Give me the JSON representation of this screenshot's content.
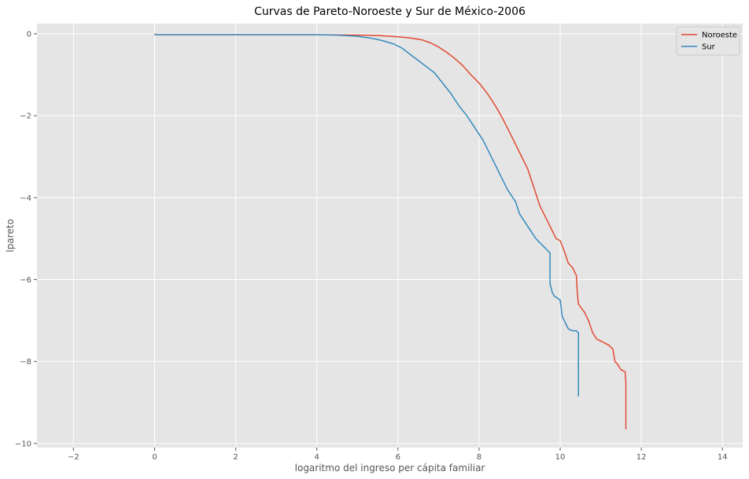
{
  "chart_data": {
    "type": "line",
    "title": "Curvas de Pareto-Noroeste y Sur de México-2006",
    "xlabel": "logaritmo del ingreso per cápita familiar",
    "ylabel": "lpareto",
    "xlim": [
      -2.9,
      14.5
    ],
    "ylim": [
      -10.1,
      0.25
    ],
    "xticks": [
      -2,
      0,
      2,
      4,
      6,
      8,
      10,
      12,
      14
    ],
    "yticks": [
      0,
      -2,
      -4,
      -6,
      -8,
      -10
    ],
    "xtick_labels": [
      "−2",
      "0",
      "2",
      "4",
      "6",
      "8",
      "10",
      "12",
      "14"
    ],
    "ytick_labels": [
      "0",
      "−2",
      "−4",
      "−6",
      "−8",
      "−10"
    ],
    "grid": true,
    "legend_position": "top-right",
    "series": [
      {
        "name": "Noroeste",
        "color": "#e24a33",
        "x": [
          0,
          0.02,
          2,
          4,
          5,
          5.5,
          6,
          6.3,
          6.6,
          6.8,
          7.0,
          7.2,
          7.4,
          7.6,
          7.8,
          8.0,
          8.2,
          8.4,
          8.6,
          8.8,
          9.0,
          9.2,
          9.4,
          9.5,
          9.6,
          9.7,
          9.8,
          9.85,
          9.9,
          10.0,
          10.1,
          10.15,
          10.2,
          10.3,
          10.4,
          10.42,
          10.45,
          10.6,
          10.7,
          10.8,
          10.9,
          11.0,
          11.2,
          11.3,
          11.35,
          11.4,
          11.5,
          11.6,
          11.62,
          11.62
        ],
        "y": [
          0,
          -0.02,
          -0.02,
          -0.02,
          -0.03,
          -0.04,
          -0.07,
          -0.1,
          -0.15,
          -0.22,
          -0.32,
          -0.45,
          -0.6,
          -0.78,
          -1.0,
          -1.2,
          -1.45,
          -1.75,
          -2.1,
          -2.5,
          -2.9,
          -3.3,
          -3.9,
          -4.2,
          -4.4,
          -4.6,
          -4.8,
          -4.9,
          -5.0,
          -5.05,
          -5.3,
          -5.45,
          -5.6,
          -5.7,
          -5.9,
          -6.3,
          -6.6,
          -6.8,
          -7.0,
          -7.3,
          -7.45,
          -7.5,
          -7.6,
          -7.7,
          -8.0,
          -8.05,
          -8.2,
          -8.25,
          -8.5,
          -9.65
        ]
      },
      {
        "name": "Sur",
        "color": "#348abd",
        "x": [
          0,
          0.02,
          2,
          4,
          4.5,
          5.0,
          5.3,
          5.6,
          5.9,
          6.1,
          6.3,
          6.5,
          6.7,
          6.9,
          7.1,
          7.3,
          7.5,
          7.7,
          7.9,
          8.1,
          8.3,
          8.5,
          8.7,
          8.9,
          9.0,
          9.2,
          9.4,
          9.5,
          9.6,
          9.7,
          9.75,
          9.75,
          9.8,
          9.85,
          10.0,
          10.05,
          10.1,
          10.2,
          10.3,
          10.4,
          10.45,
          10.45
        ],
        "y": [
          0,
          -0.02,
          -0.02,
          -0.02,
          -0.03,
          -0.06,
          -0.1,
          -0.16,
          -0.25,
          -0.35,
          -0.5,
          -0.65,
          -0.8,
          -0.95,
          -1.2,
          -1.45,
          -1.75,
          -2.0,
          -2.3,
          -2.6,
          -3.0,
          -3.4,
          -3.8,
          -4.1,
          -4.4,
          -4.7,
          -5.0,
          -5.1,
          -5.2,
          -5.3,
          -5.35,
          -6.1,
          -6.3,
          -6.4,
          -6.5,
          -6.9,
          -7.0,
          -7.2,
          -7.25,
          -7.25,
          -7.3,
          -8.85
        ]
      }
    ]
  }
}
